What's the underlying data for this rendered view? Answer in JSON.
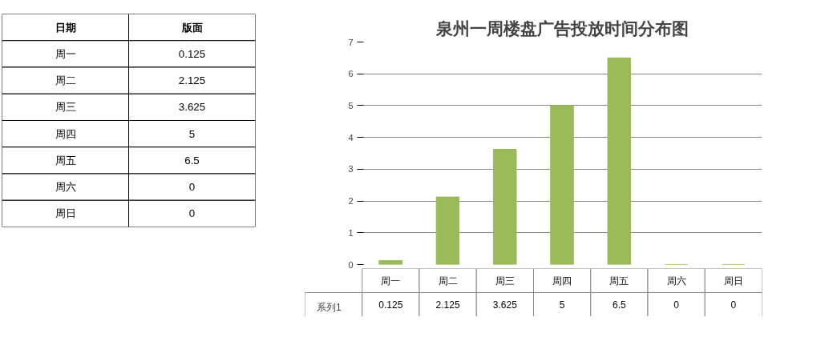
{
  "chart_data": [
    {
      "type": "other",
      "categories": [
        "周一",
        "周二",
        "周三",
        "周四",
        "周五",
        "周六",
        "周日"
      ],
      "values": [
        0.125,
        2.125,
        3.625,
        5,
        6.5,
        0,
        0
      ],
      "data_labels": true,
      "annotations": [
        "日期",
        "版面"
      ]
    },
    {
      "type": "bar",
      "title": "泉州一周楼盘广告投放时间分布图",
      "categories": [
        "周一",
        "周二",
        "周三",
        "周四",
        "周五",
        "周六",
        "周日"
      ],
      "series": [
        {
          "name": "系列1",
          "color": "#9bbb59",
          "values": [
            0.125,
            2.125,
            3.625,
            5,
            6.5,
            0,
            0
          ]
        }
      ],
      "ylim": [
        0,
        7
      ],
      "yticks": [
        0,
        1,
        2,
        3,
        4,
        5,
        6,
        7
      ],
      "grid": "y",
      "legend": "bottom",
      "data_labels": true
    }
  ]
}
